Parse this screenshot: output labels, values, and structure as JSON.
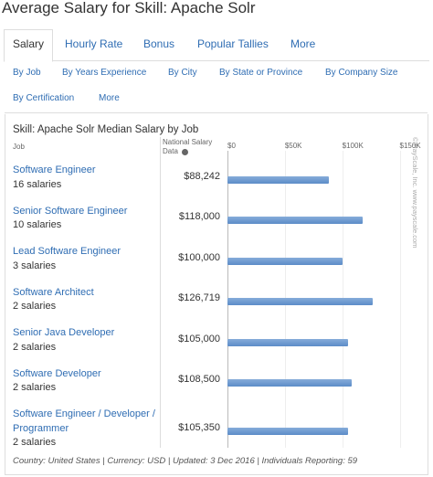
{
  "page_title": "Average Salary for Skill: Apache Solr",
  "tabs": [
    "Salary",
    "Hourly Rate",
    "Bonus",
    "Popular Tallies",
    "More"
  ],
  "subtabs": [
    "By Job",
    "By Years Experience",
    "By City",
    "By State or Province",
    "By Company Size",
    "By Certification",
    "More"
  ],
  "chart": {
    "title": "Skill: Apache Solr Median Salary by Job",
    "job_header": "Job",
    "value_header": "National Salary Data",
    "xlim": [
      0,
      150000
    ],
    "xticks": [
      {
        "value": 0,
        "label": "$0"
      },
      {
        "value": 50000,
        "label": "$50K"
      },
      {
        "value": 100000,
        "label": "$100K"
      },
      {
        "value": 150000,
        "label": "$150K"
      }
    ],
    "bar_color": "#86acd9",
    "rows": [
      {
        "job": "Software Engineer",
        "count": "16 salaries",
        "value": 88242,
        "value_label": "$88,242"
      },
      {
        "job": "Senior Software Engineer",
        "count": "10 salaries",
        "value": 118000,
        "value_label": "$118,000"
      },
      {
        "job": "Lead Software Engineer",
        "count": "3 salaries",
        "value": 100000,
        "value_label": "$100,000"
      },
      {
        "job": "Software Architect",
        "count": "2 salaries",
        "value": 126719,
        "value_label": "$126,719"
      },
      {
        "job": "Senior Java Developer",
        "count": "2 salaries",
        "value": 105000,
        "value_label": "$105,000"
      },
      {
        "job": "Software Developer",
        "count": "2 salaries",
        "value": 108500,
        "value_label": "$108,500"
      },
      {
        "job": "Software Engineer / Developer / Programmer",
        "count": "2 salaries",
        "value": 105350,
        "value_label": "$105,350"
      }
    ],
    "watermark": "© PayScale, Inc.   www.payscale.com"
  },
  "footer": "Country: United States | Currency: USD | Updated: 3 Dec 2016 | Individuals Reporting: 59"
}
